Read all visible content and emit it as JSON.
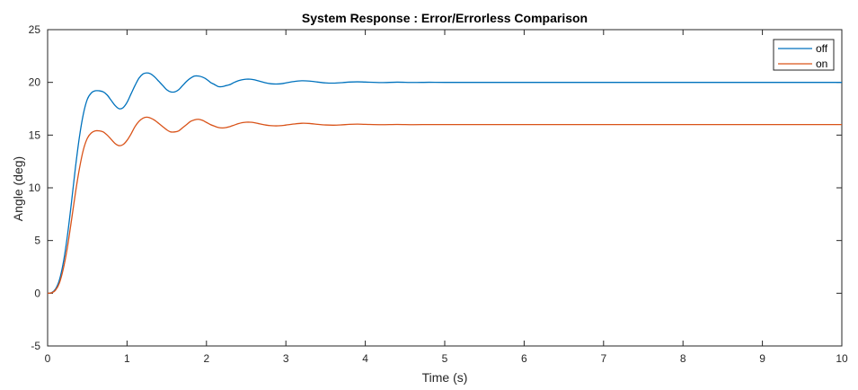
{
  "chart_data": {
    "type": "line",
    "title": "System Response : Error/Errorless Comparison",
    "xlabel": "Time (s)",
    "ylabel": "Angle (deg)",
    "xlim": [
      0,
      10
    ],
    "ylim": [
      -5,
      25
    ],
    "x_ticks": [
      0,
      1,
      2,
      3,
      4,
      5,
      6,
      7,
      8,
      9,
      10
    ],
    "y_ticks": [
      -5,
      0,
      5,
      10,
      15,
      20,
      25
    ],
    "grid": false,
    "legend_position": "top-right",
    "series": [
      {
        "name": "off",
        "color": "#0072BD",
        "x": [
          0,
          0.05,
          0.1,
          0.15,
          0.2,
          0.25,
          0.3,
          0.35,
          0.4,
          0.45,
          0.5,
          0.55,
          0.6,
          0.65,
          0.7,
          0.75,
          0.8,
          0.85,
          0.9,
          0.95,
          1.0,
          1.05,
          1.1,
          1.15,
          1.2,
          1.25,
          1.3,
          1.35,
          1.4,
          1.45,
          1.5,
          1.55,
          1.6,
          1.65,
          1.7,
          1.75,
          1.8,
          1.85,
          1.9,
          1.95,
          2.0,
          2.05,
          2.1,
          2.15,
          2.2,
          2.25,
          2.3,
          2.35,
          2.4,
          2.45,
          2.5,
          2.55,
          2.6,
          2.65,
          2.7,
          2.75,
          2.8,
          2.85,
          2.9,
          2.95,
          3.0,
          3.1,
          3.2,
          3.3,
          3.4,
          3.5,
          3.6,
          3.7,
          3.8,
          3.9,
          4.0,
          4.2,
          4.4,
          4.6,
          4.8,
          5.0,
          5.5,
          6.0,
          7.0,
          8.0,
          9.0,
          10.0
        ],
        "y": [
          0,
          0.05,
          0.4,
          1.3,
          3.0,
          5.5,
          8.6,
          11.9,
          14.8,
          17.0,
          18.4,
          19.0,
          19.2,
          19.2,
          19.1,
          18.8,
          18.3,
          17.8,
          17.5,
          17.6,
          18.1,
          18.9,
          19.7,
          20.4,
          20.8,
          20.9,
          20.8,
          20.5,
          20.1,
          19.7,
          19.3,
          19.1,
          19.1,
          19.3,
          19.7,
          20.1,
          20.4,
          20.6,
          20.6,
          20.5,
          20.3,
          20.0,
          19.8,
          19.6,
          19.6,
          19.7,
          19.8,
          20.0,
          20.15,
          20.25,
          20.3,
          20.3,
          20.25,
          20.15,
          20.05,
          19.95,
          19.88,
          19.85,
          19.85,
          19.88,
          19.95,
          20.08,
          20.15,
          20.12,
          20.03,
          19.95,
          19.93,
          19.97,
          20.03,
          20.05,
          20.03,
          19.98,
          20.02,
          19.99,
          20.01,
          20.0,
          20.0,
          20.0,
          20.0,
          20.0,
          20.0,
          20.0
        ]
      },
      {
        "name": "on",
        "color": "#D95319",
        "x": [
          0,
          0.05,
          0.1,
          0.15,
          0.2,
          0.25,
          0.3,
          0.35,
          0.4,
          0.45,
          0.5,
          0.55,
          0.6,
          0.65,
          0.7,
          0.75,
          0.8,
          0.85,
          0.9,
          0.95,
          1.0,
          1.05,
          1.1,
          1.15,
          1.2,
          1.25,
          1.3,
          1.35,
          1.4,
          1.45,
          1.5,
          1.55,
          1.6,
          1.65,
          1.7,
          1.75,
          1.8,
          1.85,
          1.9,
          1.95,
          2.0,
          2.05,
          2.1,
          2.15,
          2.2,
          2.25,
          2.3,
          2.35,
          2.4,
          2.45,
          2.5,
          2.55,
          2.6,
          2.65,
          2.7,
          2.75,
          2.8,
          2.85,
          2.9,
          2.95,
          3.0,
          3.1,
          3.2,
          3.3,
          3.4,
          3.5,
          3.6,
          3.7,
          3.8,
          3.9,
          4.0,
          4.2,
          4.4,
          4.6,
          4.8,
          5.0,
          5.5,
          6.0,
          7.0,
          8.0,
          9.0,
          10.0
        ],
        "y": [
          0,
          0.04,
          0.3,
          1.0,
          2.4,
          4.4,
          6.9,
          9.5,
          11.8,
          13.6,
          14.7,
          15.2,
          15.4,
          15.4,
          15.3,
          15.0,
          14.6,
          14.2,
          14.0,
          14.1,
          14.5,
          15.1,
          15.8,
          16.3,
          16.6,
          16.7,
          16.6,
          16.4,
          16.1,
          15.8,
          15.5,
          15.3,
          15.3,
          15.4,
          15.7,
          16.0,
          16.3,
          16.45,
          16.5,
          16.4,
          16.2,
          16.0,
          15.85,
          15.72,
          15.68,
          15.72,
          15.82,
          15.95,
          16.08,
          16.18,
          16.22,
          16.22,
          16.18,
          16.1,
          16.02,
          15.95,
          15.9,
          15.88,
          15.88,
          15.9,
          15.95,
          16.05,
          16.12,
          16.1,
          16.02,
          15.96,
          15.94,
          15.97,
          16.02,
          16.04,
          16.02,
          15.99,
          16.01,
          15.99,
          16.0,
          16.0,
          16.0,
          16.0,
          16.0,
          16.0,
          16.0,
          16.0
        ]
      }
    ]
  }
}
